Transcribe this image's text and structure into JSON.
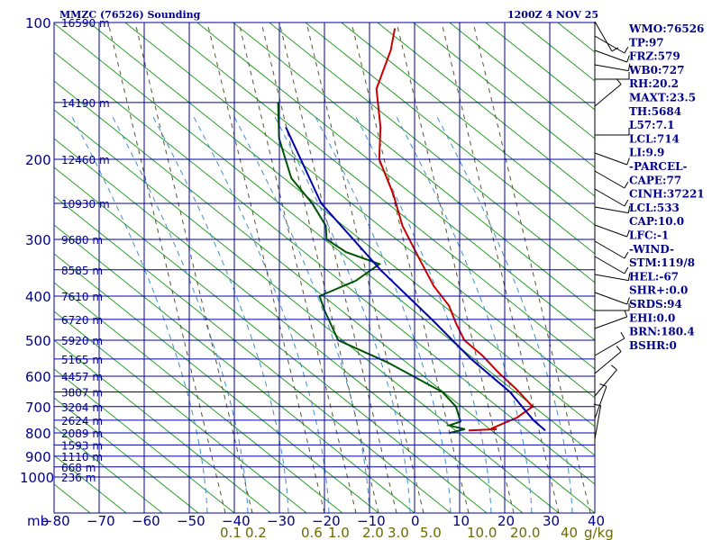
{
  "chart_data": {
    "type": "line",
    "title": "MMZC (76526) Sounding",
    "valid_time": "1200Z  4 NOV 25",
    "x_axis_label": "mb",
    "x_ticks": [
      -80,
      -70,
      -60,
      -50,
      -40,
      -30,
      -20,
      -10,
      0,
      10,
      20,
      30,
      40
    ],
    "y_ticks": [
      100,
      200,
      300,
      400,
      500,
      600,
      700,
      800,
      900,
      1000
    ],
    "height_labels": [
      {
        "p": 100,
        "label": "16590 m"
      },
      {
        "p": 150,
        "label": "14190 m"
      },
      {
        "p": 200,
        "label": "12460 m"
      },
      {
        "p": 250,
        "label": "10930 m"
      },
      {
        "p": 300,
        "label": "9680 m"
      },
      {
        "p": 350,
        "label": "8585 m"
      },
      {
        "p": 400,
        "label": "7610 m"
      },
      {
        "p": 450,
        "label": "6720 m"
      },
      {
        "p": 500,
        "label": "5920 m"
      },
      {
        "p": 550,
        "label": "5165 m"
      },
      {
        "p": 600,
        "label": "4457 m"
      },
      {
        "p": 650,
        "label": "3807 m"
      },
      {
        "p": 700,
        "label": "3204 m"
      },
      {
        "p": 750,
        "label": "2624 m"
      },
      {
        "p": 800,
        "label": "2089 m"
      },
      {
        "p": 850,
        "label": "1593 m"
      },
      {
        "p": 900,
        "label": "1110 m"
      },
      {
        "p": 950,
        "label": "668 m"
      },
      {
        "p": 1000,
        "label": "236 m"
      }
    ],
    "mixing_ratio_labels": [
      "0.1",
      "0.2",
      "0.6",
      "1.0",
      "2.0",
      "3.0",
      "5.0",
      "10.0",
      "20.0",
      "40",
      "g/kg"
    ],
    "series": [
      {
        "name": "Temperature",
        "color": "#cc0000",
        "points": [
          [
            103,
            -69
          ],
          [
            115,
            -67
          ],
          [
            140,
            -65
          ],
          [
            170,
            -59
          ],
          [
            200,
            -55
          ],
          [
            240,
            -47
          ],
          [
            280,
            -41
          ],
          [
            330,
            -33
          ],
          [
            380,
            -26
          ],
          [
            420,
            -20
          ],
          [
            460,
            -16
          ],
          [
            500,
            -12
          ],
          [
            540,
            -6
          ],
          [
            590,
            0
          ],
          [
            640,
            6
          ],
          [
            700,
            12
          ],
          [
            740,
            10
          ],
          [
            770,
            7
          ],
          [
            780,
            6
          ],
          [
            785,
            7
          ],
          [
            790,
            1
          ]
        ]
      },
      {
        "name": "Dew Point",
        "color": "#005500",
        "points": [
          [
            150,
            -85
          ],
          [
            180,
            -80
          ],
          [
            220,
            -72
          ],
          [
            250,
            -64
          ],
          [
            280,
            -58
          ],
          [
            300,
            -56
          ],
          [
            320,
            -50
          ],
          [
            340,
            -41
          ],
          [
            370,
            -44
          ],
          [
            400,
            -50
          ],
          [
            430,
            -47
          ],
          [
            500,
            -40
          ],
          [
            560,
            -26
          ],
          [
            650,
            -10
          ],
          [
            700,
            -5
          ],
          [
            755,
            -2
          ],
          [
            770,
            -4
          ],
          [
            785,
            0
          ],
          [
            800,
            -3
          ]
        ]
      },
      {
        "name": "Parcel",
        "color": "#0000aa",
        "points": [
          [
            170,
            -80
          ],
          [
            250,
            -62
          ],
          [
            350,
            -40
          ],
          [
            450,
            -22
          ],
          [
            550,
            -8
          ],
          [
            650,
            5
          ],
          [
            750,
            14
          ],
          [
            790,
            18
          ]
        ]
      }
    ],
    "winds": [
      {
        "y": 24,
        "dir": 330
      },
      {
        "y": 40,
        "dir": 300
      },
      {
        "y": 56,
        "dir": 290
      },
      {
        "y": 72,
        "dir": 280
      },
      {
        "y": 88,
        "dir": 270
      },
      {
        "y": 118,
        "dir": 230
      },
      {
        "y": 150,
        "dir": 270
      },
      {
        "y": 170,
        "dir": 290
      },
      {
        "y": 190,
        "dir": 300
      },
      {
        "y": 210,
        "dir": 300
      },
      {
        "y": 230,
        "dir": 280
      },
      {
        "y": 250,
        "dir": 290
      },
      {
        "y": 268,
        "dir": 300
      },
      {
        "y": 285,
        "dir": 300
      },
      {
        "y": 305,
        "dir": 280
      },
      {
        "y": 325,
        "dir": 290
      },
      {
        "y": 345,
        "dir": 270
      },
      {
        "y": 365,
        "dir": 250
      },
      {
        "y": 395,
        "dir": 240
      },
      {
        "y": 415,
        "dir": 230
      },
      {
        "y": 440,
        "dir": 220
      },
      {
        "y": 465,
        "dir": 200
      },
      {
        "y": 488,
        "dir": 190
      }
    ]
  },
  "indices": [
    "WMO:76526",
    "TP:97",
    "FRZ:579",
    "WB0:727",
    "RH:20.2",
    "MAXT:23.5",
    "TH:5684",
    "L57:7.1",
    "LCL:714",
    "LI:9.9",
    "-PARCEL-",
    "CAPE:77",
    "CINH:37221",
    "LCL:533",
    "CAP:10.0",
    "LFC:-1",
    "-WIND-",
    "STM:119/8",
    "HEL:-67",
    "SHR+:0.0",
    "SRDS:94",
    "EHI:0.0",
    "BRN:180.4",
    "BSHR:0"
  ]
}
